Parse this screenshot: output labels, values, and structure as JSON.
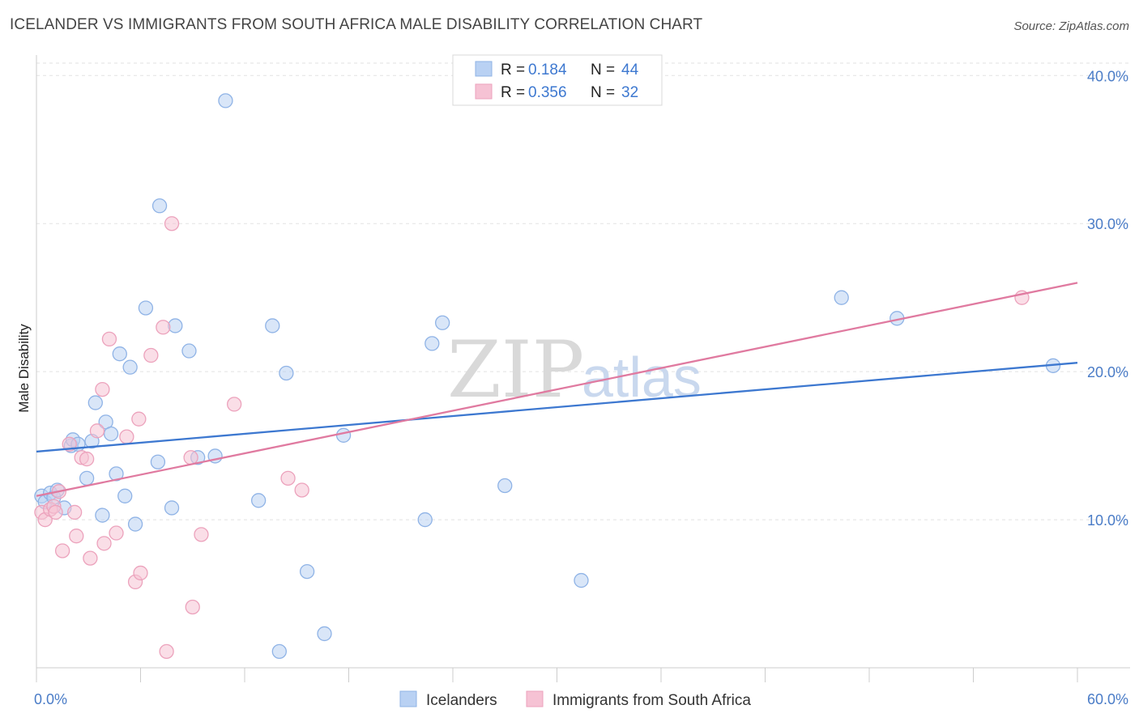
{
  "title": "ICELANDER VS IMMIGRANTS FROM SOUTH AFRICA MALE DISABILITY CORRELATION CHART",
  "source": "Source: ZipAtlas.com",
  "colors": {
    "blue": "#3d78d0",
    "pink": "#e07aa0",
    "blue_fill": "#b9d1f3",
    "pink_fill": "#f6c2d4"
  },
  "legend": {
    "r_label": "R =",
    "n_label": "N =",
    "rows": [
      {
        "r": "0.184",
        "n": "44"
      },
      {
        "r": "0.356",
        "n": "32"
      }
    ]
  },
  "watermark": {
    "zip": "ZIP",
    "atlas": "atlas"
  },
  "chart_data": {
    "type": "scatter",
    "xlabel": "",
    "ylabel": "Male Disability",
    "xlim": [
      0,
      60
    ],
    "ylim": [
      0,
      41
    ],
    "x_tick_labels": [
      "0.0%",
      "60.0%"
    ],
    "y_ticks": [
      10,
      20,
      30,
      40
    ],
    "y_tick_labels": [
      "10.0%",
      "20.0%",
      "30.0%",
      "40.0%"
    ],
    "grid": true,
    "series": [
      {
        "name": "Icelanders",
        "points": [
          [
            0.3,
            11.6
          ],
          [
            0.5,
            11.2
          ],
          [
            0.8,
            11.8
          ],
          [
            1.0,
            11.5
          ],
          [
            1.2,
            12.0
          ],
          [
            1.6,
            10.8
          ],
          [
            2.0,
            15.0
          ],
          [
            2.1,
            15.4
          ],
          [
            2.4,
            15.1
          ],
          [
            2.9,
            12.8
          ],
          [
            3.2,
            15.3
          ],
          [
            3.4,
            17.9
          ],
          [
            3.8,
            10.3
          ],
          [
            4.0,
            16.6
          ],
          [
            4.3,
            15.8
          ],
          [
            4.6,
            13.1
          ],
          [
            4.8,
            21.2
          ],
          [
            5.1,
            11.6
          ],
          [
            5.4,
            20.3
          ],
          [
            5.7,
            9.7
          ],
          [
            6.3,
            24.3
          ],
          [
            7.0,
            13.9
          ],
          [
            7.1,
            31.2
          ],
          [
            7.8,
            10.8
          ],
          [
            8.0,
            23.1
          ],
          [
            8.8,
            21.4
          ],
          [
            9.3,
            14.2
          ],
          [
            10.3,
            14.3
          ],
          [
            10.9,
            38.3
          ],
          [
            12.8,
            11.3
          ],
          [
            13.6,
            23.1
          ],
          [
            14.0,
            1.1
          ],
          [
            14.4,
            19.9
          ],
          [
            15.6,
            6.5
          ],
          [
            16.6,
            2.3
          ],
          [
            17.7,
            15.7
          ],
          [
            22.8,
            21.9
          ],
          [
            22.4,
            10.0
          ],
          [
            23.4,
            23.3
          ],
          [
            27.0,
            12.3
          ],
          [
            31.4,
            5.9
          ],
          [
            46.4,
            25.0
          ],
          [
            49.6,
            23.6
          ],
          [
            58.6,
            20.4
          ]
        ],
        "trend": [
          [
            0,
            14.6
          ],
          [
            60,
            20.6
          ]
        ]
      },
      {
        "name": "Immigrants from South Africa",
        "points": [
          [
            0.3,
            10.5
          ],
          [
            0.5,
            10.0
          ],
          [
            0.8,
            10.7
          ],
          [
            1.0,
            10.9
          ],
          [
            1.1,
            10.5
          ],
          [
            1.3,
            11.9
          ],
          [
            1.5,
            7.9
          ],
          [
            1.9,
            15.1
          ],
          [
            2.2,
            10.5
          ],
          [
            2.3,
            8.9
          ],
          [
            2.6,
            14.2
          ],
          [
            2.9,
            14.1
          ],
          [
            3.1,
            7.4
          ],
          [
            3.5,
            16.0
          ],
          [
            3.8,
            18.8
          ],
          [
            3.9,
            8.4
          ],
          [
            4.2,
            22.2
          ],
          [
            4.6,
            9.1
          ],
          [
            5.2,
            15.6
          ],
          [
            5.7,
            5.8
          ],
          [
            5.9,
            16.8
          ],
          [
            6.0,
            6.4
          ],
          [
            6.6,
            21.1
          ],
          [
            7.3,
            23.0
          ],
          [
            7.5,
            1.1
          ],
          [
            7.8,
            30.0
          ],
          [
            8.9,
            14.2
          ],
          [
            9.0,
            4.1
          ],
          [
            9.5,
            9.0
          ],
          [
            11.4,
            17.8
          ],
          [
            15.3,
            12.0
          ],
          [
            56.8,
            25.0
          ]
        ],
        "trend": [
          [
            0,
            11.6
          ],
          [
            60,
            26.0
          ]
        ]
      }
    ]
  },
  "extra_points": {
    "pink_near_axis": [
      14.5,
      12.8
    ]
  }
}
